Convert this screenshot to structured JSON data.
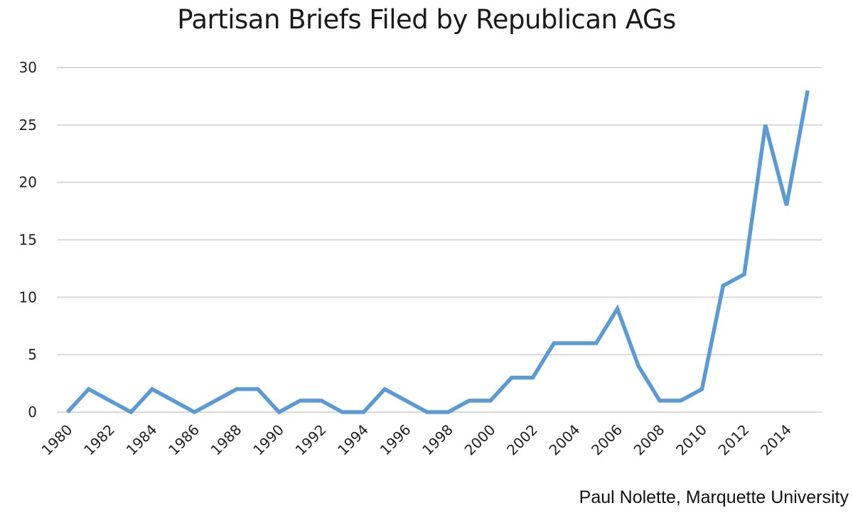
{
  "chart_data": {
    "type": "line",
    "title": "Partisan Briefs Filed by Republican AGs",
    "xlabel": "",
    "ylabel": "",
    "x": [
      1980,
      1981,
      1982,
      1983,
      1984,
      1985,
      1986,
      1987,
      1988,
      1989,
      1990,
      1991,
      1992,
      1993,
      1994,
      1995,
      1996,
      1997,
      1998,
      1999,
      2000,
      2001,
      2002,
      2003,
      2004,
      2005,
      2006,
      2007,
      2008,
      2009,
      2010,
      2011,
      2012,
      2013,
      2014,
      2015
    ],
    "series": [
      {
        "values": [
          0,
          2,
          1,
          0,
          2,
          1,
          0,
          1,
          2,
          2,
          0,
          1,
          1,
          0,
          0,
          2,
          1,
          0,
          0,
          1,
          1,
          3,
          3,
          6,
          6,
          6,
          9,
          4,
          1,
          1,
          2,
          11,
          12,
          25,
          18,
          28
        ],
        "color": "#5b9bd5"
      }
    ],
    "x_tick_labels": [
      "1980",
      "1982",
      "1984",
      "1986",
      "1988",
      "1990",
      "1992",
      "1994",
      "1996",
      "1998",
      "2000",
      "2002",
      "2004",
      "2006",
      "2008",
      "2010",
      "2012",
      "2014"
    ],
    "y_tick_labels": [
      "0",
      "5",
      "10",
      "15",
      "20",
      "25",
      "30"
    ],
    "ylim": [
      0,
      30
    ],
    "grid": true,
    "legend": "none",
    "annotation": "Paul Nolette, Marquette University"
  }
}
